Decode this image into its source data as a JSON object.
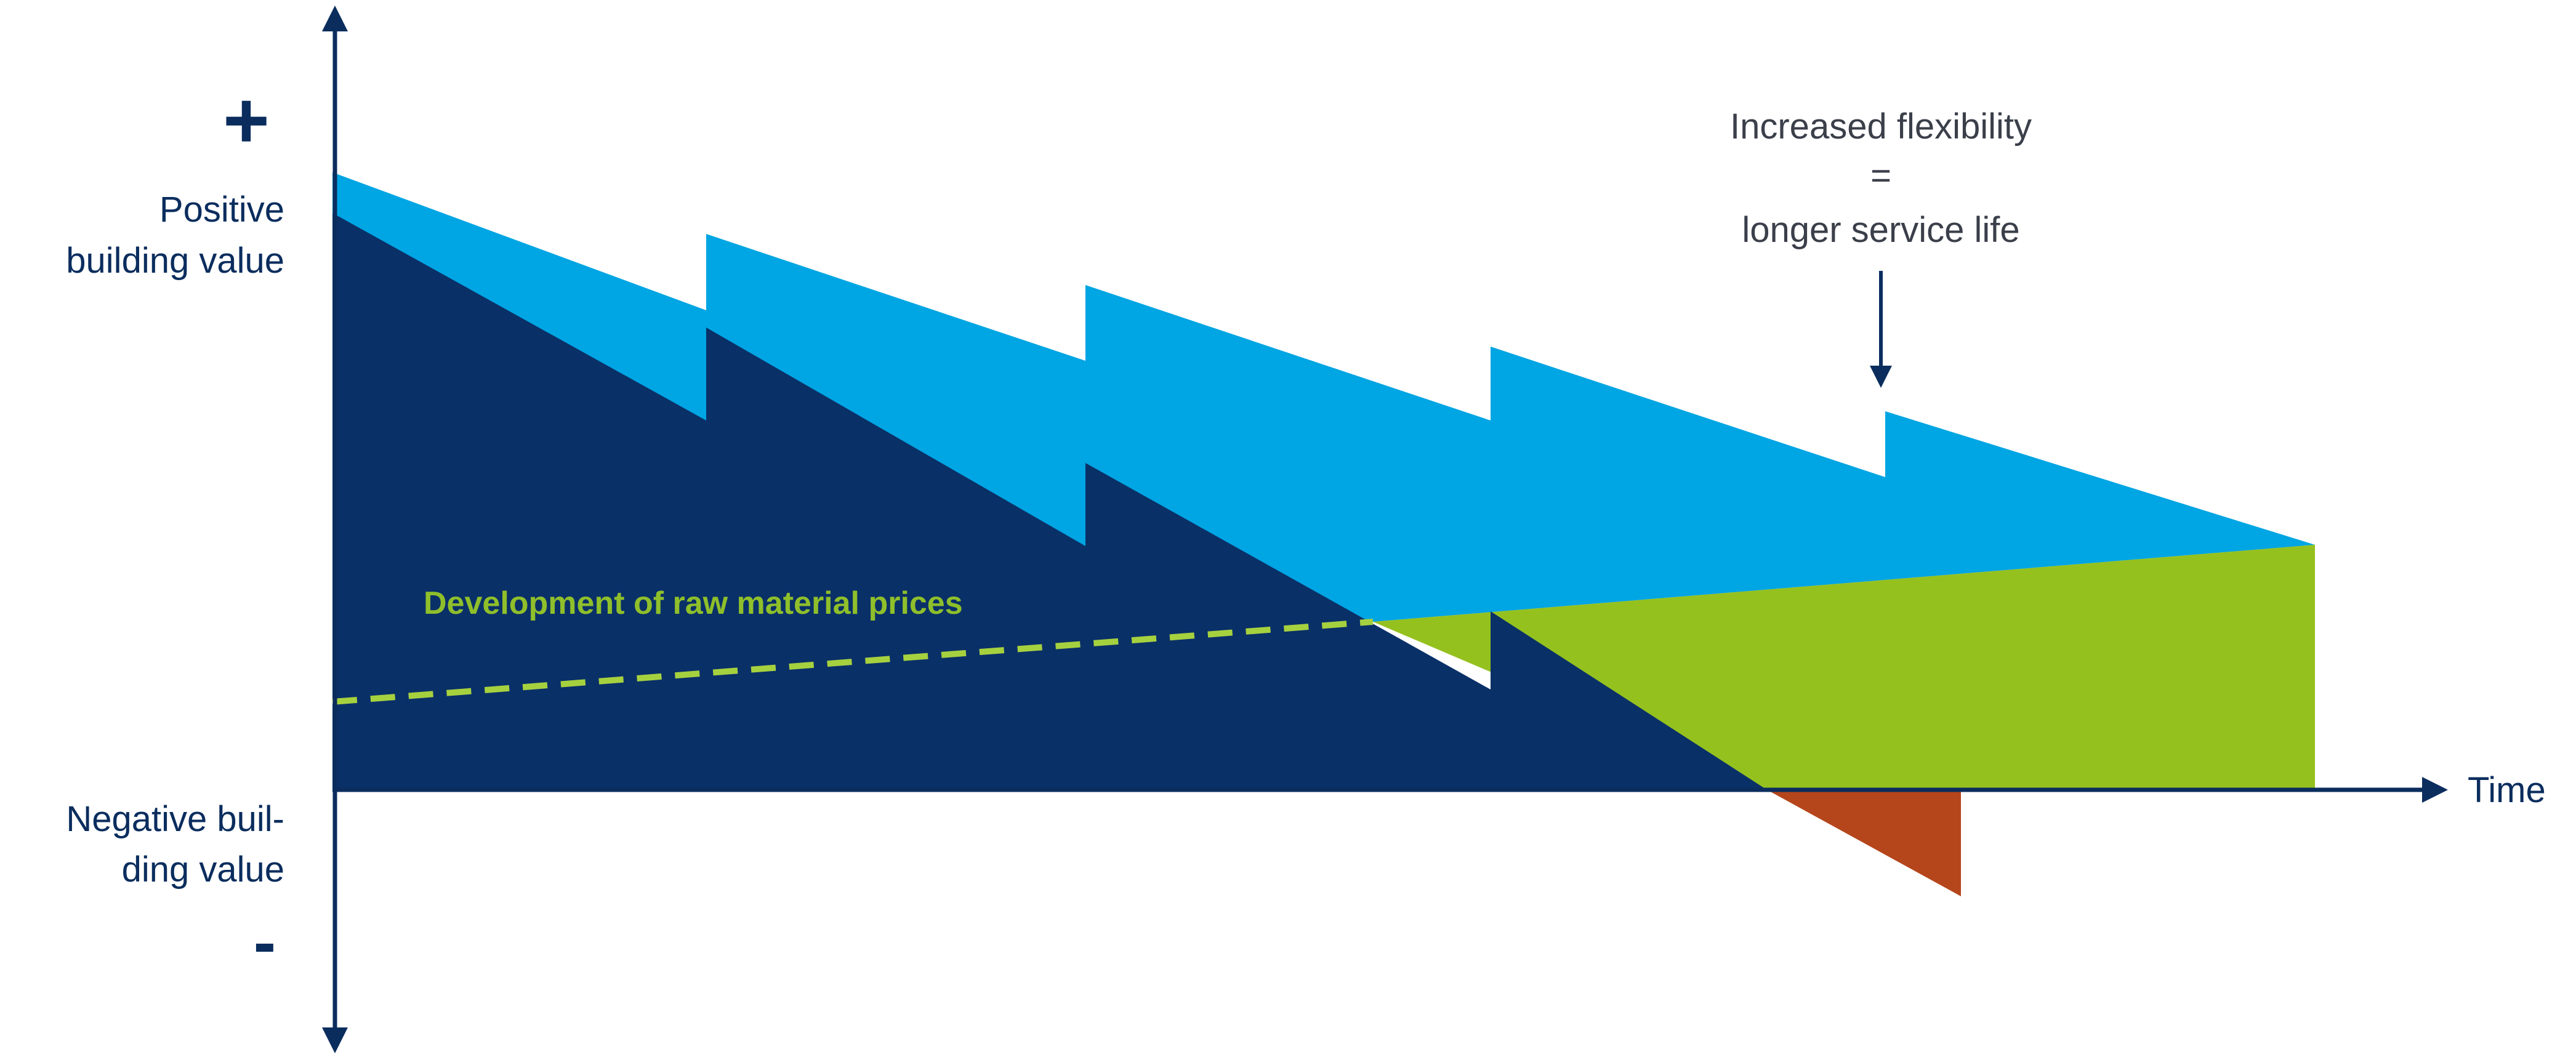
{
  "y_axis": {
    "positive_sign": "+",
    "positive_label_line1": "Positive",
    "positive_label_line2": "building value",
    "negative_label_line1": "Negative buil-",
    "negative_label_line2": "ding value",
    "negative_sign": "-"
  },
  "x_axis": {
    "label": "Time"
  },
  "annotation": {
    "line1": "Increased flexibility",
    "line2": "=",
    "line3": "longer service life"
  },
  "raw_material_line": {
    "label": "Development of raw material prices"
  },
  "colors": {
    "axis": "#0b2d5e",
    "building_value_base": "#0a3068",
    "flexibility_gain": "#00a5e3",
    "raw_material_value": "#95c11f",
    "negative_value": "#b5461b",
    "dashed_line": "#a6d13f"
  }
}
